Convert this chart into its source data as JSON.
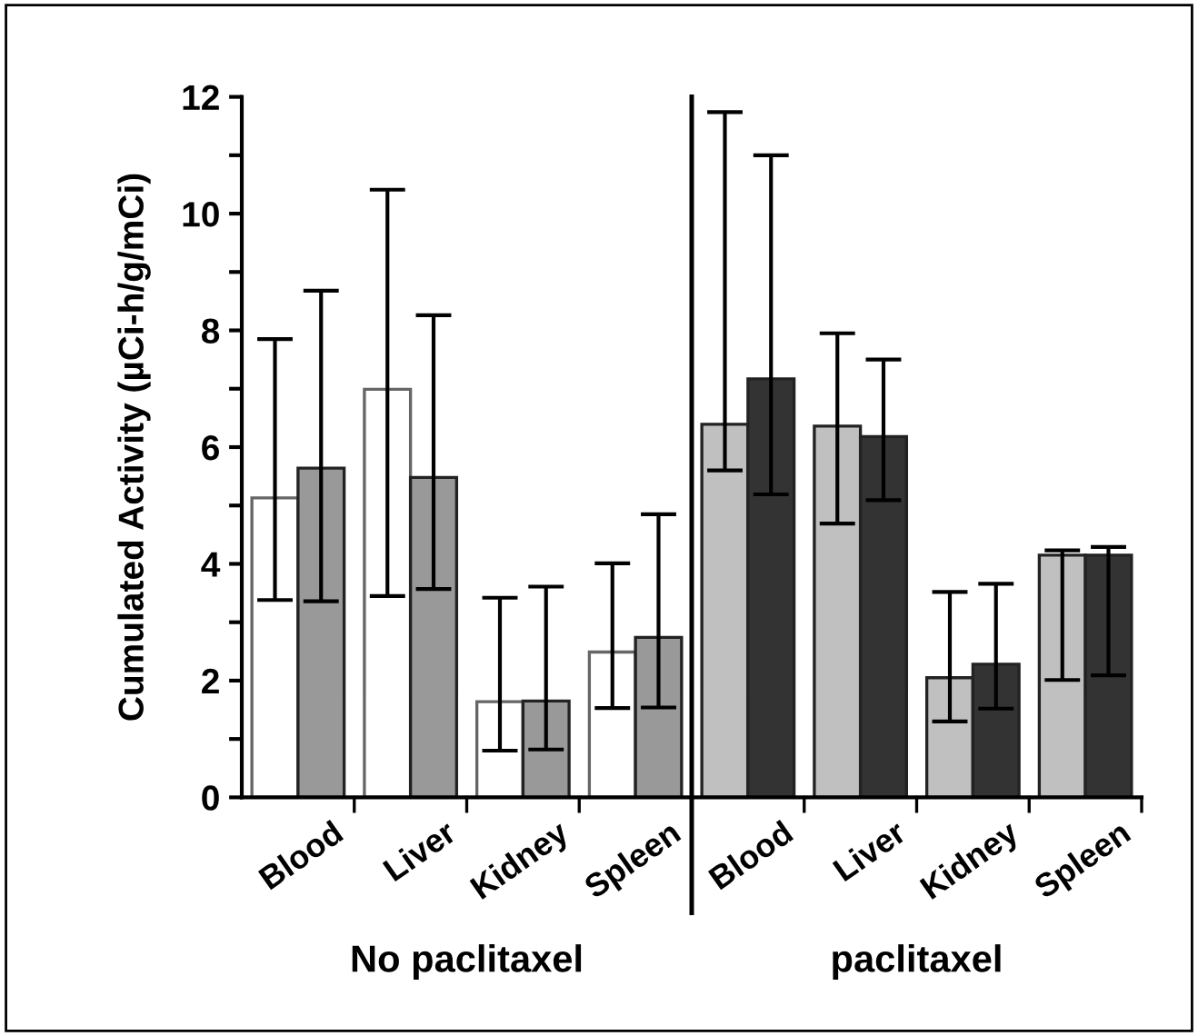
{
  "chart_data": {
    "type": "bar",
    "ylabel": "Cumulated Activity (µCi-h/g/mCi)",
    "categories": [
      "Blood",
      "Liver",
      "Kidney",
      "Spleen",
      "Blood",
      "Liver",
      "Kidney",
      "Spleen"
    ],
    "series": [
      {
        "color": "#ffffff",
        "values": [
          5.13,
          6.99,
          1.64,
          2.49,
          null,
          null,
          null,
          null
        ],
        "errors": [
          [
            3.38,
            7.85
          ],
          [
            3.45,
            10.41
          ],
          [
            0.8,
            3.42
          ],
          [
            1.53,
            4.01
          ],
          null,
          null,
          null,
          null
        ]
      },
      {
        "color": "#999999",
        "values": [
          5.64,
          5.48,
          1.65,
          2.74,
          null,
          null,
          null,
          null
        ],
        "errors": [
          [
            3.36,
            8.68
          ],
          [
            3.57,
            8.26
          ],
          [
            0.82,
            3.61
          ],
          [
            1.54,
            4.85
          ],
          null,
          null,
          null,
          null
        ]
      },
      {
        "color": "#c0c0c0",
        "values": [
          null,
          null,
          null,
          null,
          6.39,
          6.36,
          2.05,
          4.15
        ],
        "errors": [
          null,
          null,
          null,
          null,
          [
            5.6,
            11.74
          ],
          [
            4.69,
            7.95
          ],
          [
            1.3,
            3.52
          ],
          [
            2.01,
            4.23
          ]
        ]
      },
      {
        "color": "#333333",
        "values": [
          null,
          null,
          null,
          null,
          7.17,
          6.18,
          2.28,
          4.15
        ],
        "errors": [
          null,
          null,
          null,
          null,
          [
            5.19,
            11.0
          ],
          [
            5.09,
            7.5
          ],
          [
            1.52,
            3.66
          ],
          [
            2.09,
            4.29
          ]
        ]
      }
    ],
    "ylim": [
      0,
      12
    ],
    "yticks": [
      0,
      {
        "value": 1,
        "label": null
      },
      2,
      {
        "value": 3,
        "label": null
      },
      4,
      {
        "value": 5,
        "label": null
      },
      6,
      {
        "value": 7,
        "label": null
      },
      8,
      {
        "value": 9,
        "label": null
      },
      10,
      {
        "value": 11,
        "label": null
      },
      12
    ],
    "annotations": [
      "No paclitaxel",
      "paclitaxel"
    ],
    "grid": false,
    "legend": false
  }
}
